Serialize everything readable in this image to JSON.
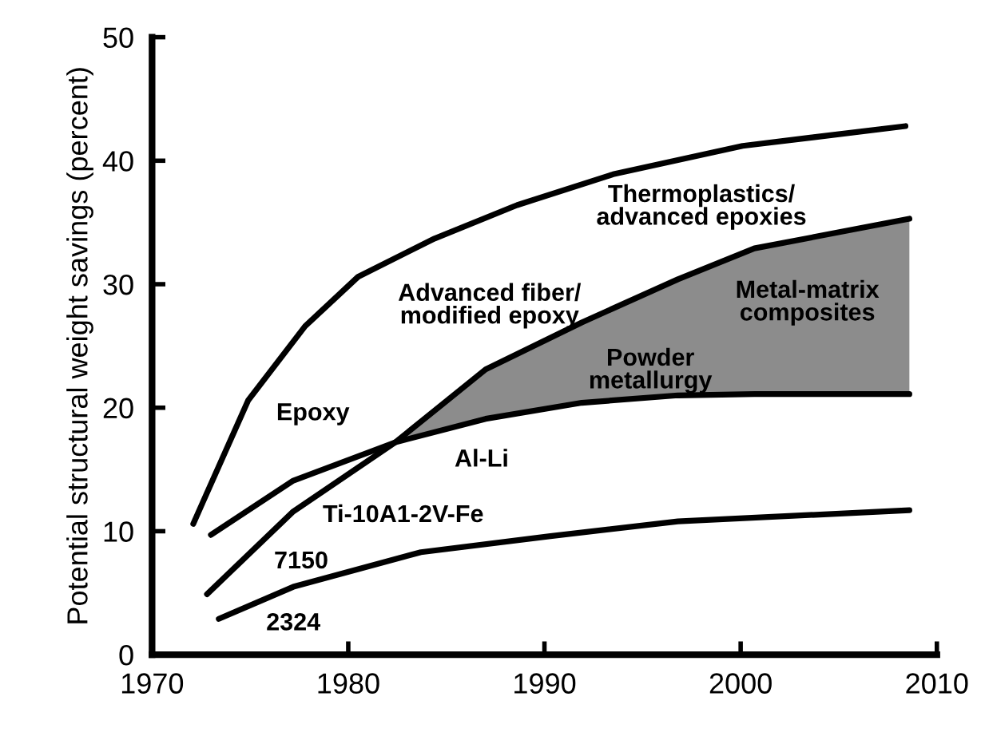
{
  "chart_data": {
    "type": "line",
    "ylabel": "Potential structural weight savings (percent)",
    "xlim": [
      1970,
      2010
    ],
    "xticks": [
      1970,
      1980,
      1990,
      2000,
      2010
    ],
    "ylim": [
      0,
      50
    ],
    "yticks": [
      0,
      10,
      20,
      30,
      40,
      50
    ],
    "grid": false,
    "marker": "none",
    "line_style": "solid",
    "series": [
      {
        "color": "#000000",
        "x": [
          1972.1,
          1974.9,
          1977.8,
          1980.5,
          1984.4,
          1988.6,
          1993.5,
          2000.1,
          2008.4
        ],
        "values": [
          10.6,
          20.6,
          26.6,
          30.6,
          33.7,
          36.4,
          38.9,
          41.2,
          42.8
        ]
      },
      {
        "color": "#000000",
        "x": [
          1973.0,
          1977.2,
          1982.4,
          1987.0,
          1991.9,
          1996.8,
          2000.7,
          2008.6
        ],
        "values": [
          9.7,
          14.1,
          17.2,
          19.1,
          20.4,
          21.0,
          21.1,
          21.1
        ]
      },
      {
        "color": "#000000",
        "x": [
          1972.8,
          1977.2,
          1982.4,
          1987.0,
          1991.9,
          1996.8,
          2000.7,
          2008.6
        ],
        "values": [
          4.9,
          11.6,
          17.2,
          23.1,
          26.9,
          30.4,
          32.9,
          35.3
        ],
        "lower": [
          null,
          null,
          17.2,
          19.1,
          20.4,
          21.0,
          21.1,
          21.1
        ],
        "upper": [
          null,
          null,
          17.2,
          23.1,
          26.9,
          30.4,
          32.9,
          35.3
        ]
      },
      {
        "color": "#000000",
        "x": [
          1973.4,
          1977.2,
          1983.7,
          1990.3,
          1996.8,
          2008.6
        ],
        "values": [
          2.9,
          5.5,
          8.3,
          9.6,
          10.8,
          11.7
        ]
      }
    ],
    "annotations": [
      "Thermoplastics/\nadvanced epoxies",
      "Advanced fiber/\nmodified epoxy",
      "Epoxy",
      "Metal-matrix\ncomposites",
      "Powder\nmetallurgy",
      "Al-Li",
      "Ti-10A1-2V-Fe",
      "7150",
      "2324"
    ]
  }
}
